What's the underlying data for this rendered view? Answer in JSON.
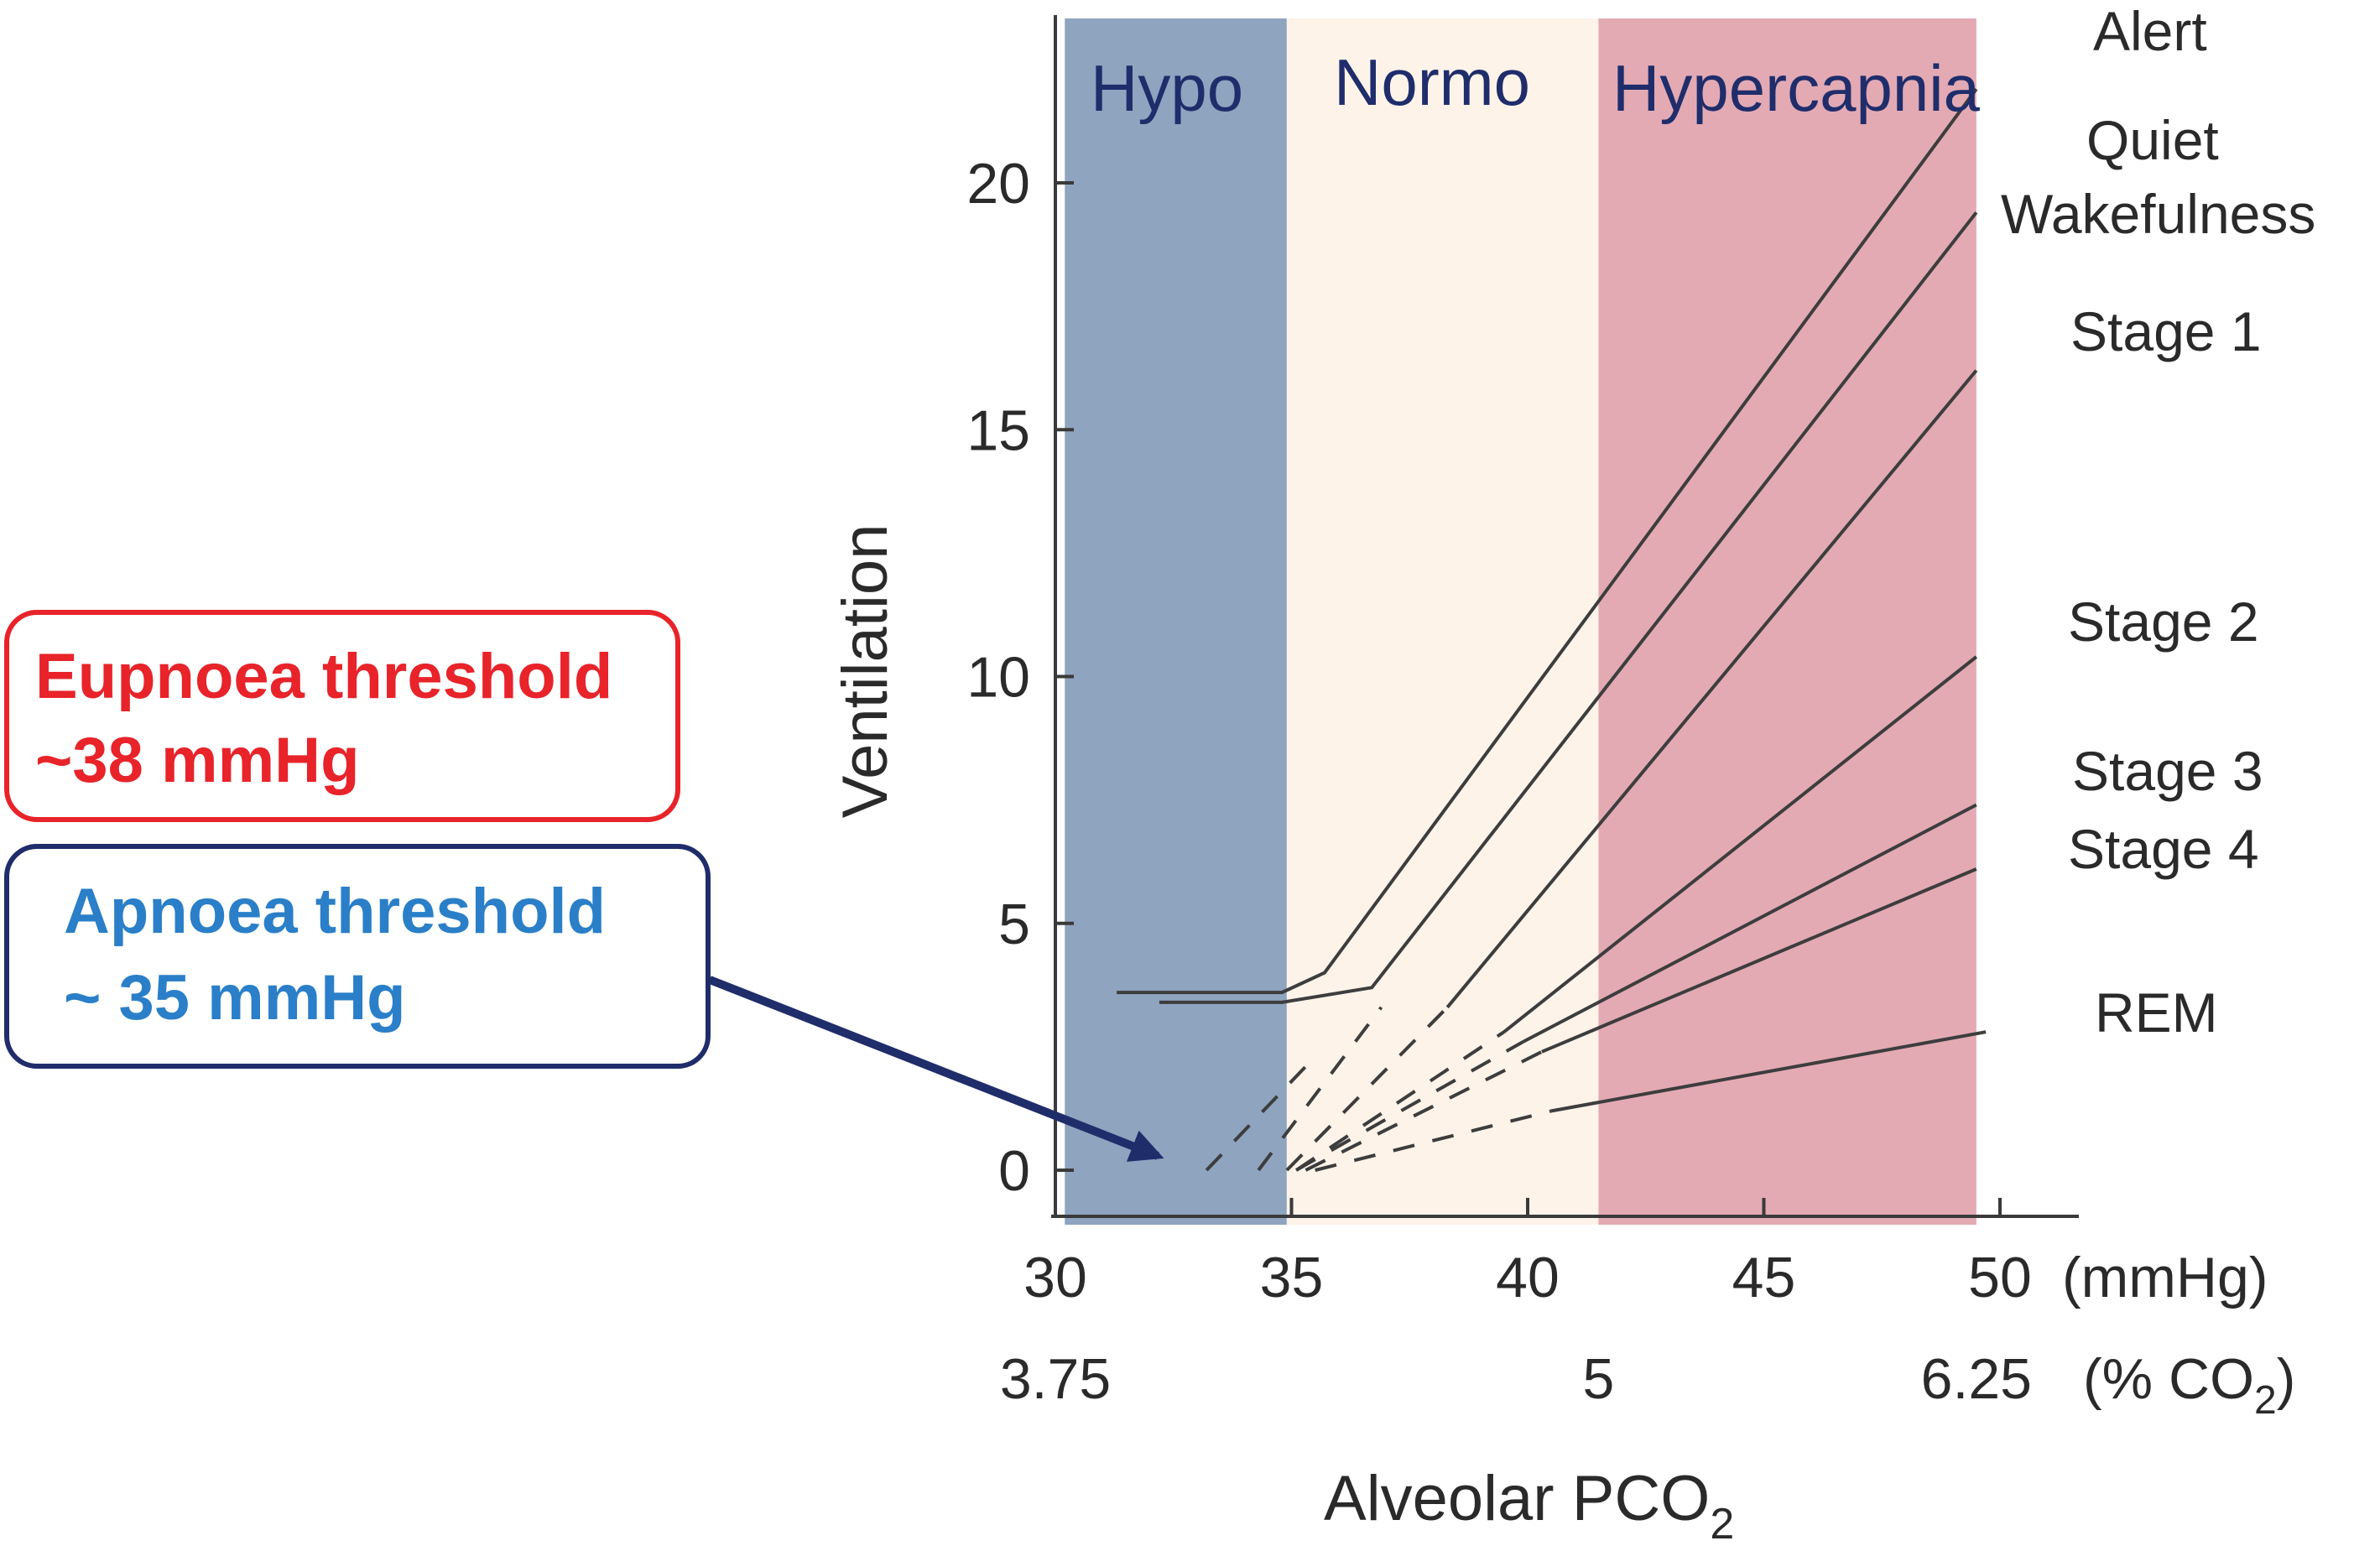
{
  "chart_data": {
    "type": "line",
    "xlabel": "Alveolar PCO",
    "xlabel_subscript": "2",
    "ylabel": "Ventilation",
    "xlim": [
      30,
      50
    ],
    "ylim": [
      0,
      20
    ],
    "x_ticks": [
      30,
      35,
      40,
      45,
      50
    ],
    "x_unit": "(mmHg)",
    "y_ticks": [
      0,
      5,
      10,
      15,
      20
    ],
    "x_ticks_secondary": [
      {
        "at": 30,
        "label": "3.75"
      },
      {
        "at": 41.5,
        "label": "5"
      },
      {
        "at": 49.5,
        "label": "6.25"
      }
    ],
    "x_unit_secondary": "(% CO",
    "x_unit_secondary_subscript": "2",
    "x_unit_secondary_close": ")",
    "regions": [
      {
        "name": "Hypo",
        "x_from": 30.2,
        "x_to": 34.9,
        "color": "#8ea4bf"
      },
      {
        "name": "Normo",
        "x_from": 34.9,
        "x_to": 41.5,
        "color": "#fdf3e9"
      },
      {
        "name": "Hypercapnia",
        "x_from": 41.5,
        "x_to": 49.5,
        "color": "#e3aab4"
      }
    ],
    "series": [
      {
        "name": "Alert",
        "solid": [
          [
            31.3,
            3.6
          ],
          [
            34.8,
            3.6
          ],
          [
            35.7,
            4.0
          ],
          [
            49.5,
            21.9
          ]
        ],
        "dashed": [
          [
            33.2,
            0.0
          ],
          [
            35.5,
            2.3
          ]
        ]
      },
      {
        "name": "Quiet Wakefulness",
        "solid": [
          [
            32.2,
            3.4
          ],
          [
            34.8,
            3.4
          ],
          [
            36.7,
            3.7
          ],
          [
            49.5,
            19.4
          ]
        ],
        "dashed": [
          [
            34.3,
            0.0
          ],
          [
            36.9,
            3.3
          ]
        ]
      },
      {
        "name": "Stage 1",
        "solid": [
          [
            38.3,
            3.3
          ],
          [
            49.5,
            16.2
          ]
        ],
        "dashed": [
          [
            34.9,
            0.0
          ],
          [
            38.3,
            3.3
          ]
        ]
      },
      {
        "name": "Stage 2",
        "solid": [
          [
            39.5,
            2.8
          ],
          [
            49.5,
            10.4
          ]
        ],
        "dashed": [
          [
            35.1,
            0.0
          ],
          [
            39.5,
            2.8
          ]
        ]
      },
      {
        "name": "Stage 3",
        "solid": [
          [
            39.9,
            2.6
          ],
          [
            49.5,
            7.4
          ]
        ],
        "dashed": [
          [
            35.1,
            0.0
          ],
          [
            39.9,
            2.6
          ]
        ]
      },
      {
        "name": "Stage 4",
        "solid": [
          [
            40.3,
            2.4
          ],
          [
            49.5,
            6.1
          ]
        ],
        "dashed": [
          [
            35.3,
            0.0
          ],
          [
            40.3,
            2.4
          ]
        ]
      },
      {
        "name": "REM",
        "solid": [
          [
            40.5,
            1.2
          ],
          [
            49.7,
            2.8
          ]
        ],
        "dashed": [
          [
            35.5,
            0.0
          ],
          [
            40.5,
            1.2
          ]
        ]
      }
    ],
    "series_labels": [
      "Alert",
      "Quiet",
      "Wakefulness",
      "Stage 1",
      "Stage 2",
      "Stage 3",
      "Stage 4",
      "REM"
    ]
  },
  "callouts": {
    "eupnoea": {
      "line1": "Eupnoea threshold",
      "line2": "~38 mmHg",
      "color": "#e8232a"
    },
    "apnoea": {
      "line1": "Apnoea threshold",
      "line2": "~ 35 mmHg",
      "color": "#2a7fc8",
      "border": "#1f2d6b"
    }
  },
  "colors": {
    "axis": "#3a3a3a",
    "curve": "#3d3d3d",
    "arrow": "#1f2d6b"
  }
}
